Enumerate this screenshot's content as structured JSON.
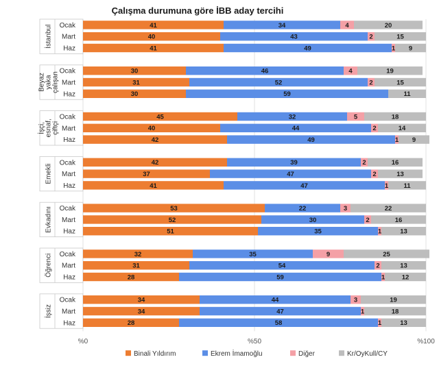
{
  "chart_data": {
    "type": "bar",
    "orientation": "horizontal",
    "stacked": true,
    "title": "Çalışma durumuna göre İBB aday tercihi",
    "xlim": [
      0,
      100
    ],
    "x_ticks": [
      "%0",
      "%50",
      "%100"
    ],
    "series": [
      {
        "name": "Binali Yıldırım",
        "color": "#ed7d31"
      },
      {
        "name": "Ekrem İmamoğlu",
        "color": "#5b8ee6"
      },
      {
        "name": "Diğer",
        "color": "#f4a0a6"
      },
      {
        "name": "Kr/OyKull/CY",
        "color": "#bdbdbd"
      }
    ],
    "groups": [
      {
        "label": [
          "İstanbul"
        ],
        "rows": [
          {
            "month": "Ocak",
            "values": [
              41,
              34,
              4,
              20
            ]
          },
          {
            "month": "Mart",
            "values": [
              40,
              43,
              2,
              15
            ]
          },
          {
            "month": "Haz",
            "values": [
              41,
              49,
              1,
              9
            ]
          }
        ]
      },
      {
        "label": [
          "Beyaz",
          "yaka",
          "çalışan"
        ],
        "rows": [
          {
            "month": "Ocak",
            "values": [
              30,
              46,
              4,
              19
            ]
          },
          {
            "month": "Mart",
            "values": [
              31,
              52,
              2,
              15
            ]
          },
          {
            "month": "Haz",
            "values": [
              30,
              59,
              0,
              11
            ]
          }
        ]
      },
      {
        "label": [
          "İşçi,",
          "esnaf,",
          "çiftçi"
        ],
        "rows": [
          {
            "month": "Ocak",
            "values": [
              45,
              32,
              5,
              18
            ]
          },
          {
            "month": "Mart",
            "values": [
              40,
              44,
              2,
              14
            ]
          },
          {
            "month": "Haz",
            "values": [
              42,
              49,
              1,
              9
            ]
          }
        ]
      },
      {
        "label": [
          "Emekli"
        ],
        "rows": [
          {
            "month": "Ocak",
            "values": [
              42,
              39,
              2,
              16
            ]
          },
          {
            "month": "Mart",
            "values": [
              37,
              47,
              2,
              13
            ]
          },
          {
            "month": "Haz",
            "values": [
              41,
              47,
              1,
              11
            ]
          }
        ]
      },
      {
        "label": [
          "Evkadını"
        ],
        "rows": [
          {
            "month": "Ocak",
            "values": [
              53,
              22,
              3,
              22
            ]
          },
          {
            "month": "Mart",
            "values": [
              52,
              30,
              2,
              16
            ]
          },
          {
            "month": "Haz",
            "values": [
              51,
              35,
              1,
              13
            ]
          }
        ]
      },
      {
        "label": [
          "Öğrenci"
        ],
        "rows": [
          {
            "month": "Ocak",
            "values": [
              32,
              35,
              9,
              25
            ]
          },
          {
            "month": "Mart",
            "values": [
              31,
              54,
              2,
              13
            ]
          },
          {
            "month": "Haz",
            "values": [
              28,
              59,
              1,
              12
            ]
          }
        ]
      },
      {
        "label": [
          "İşsiz"
        ],
        "rows": [
          {
            "month": "Ocak",
            "values": [
              34,
              44,
              3,
              19
            ]
          },
          {
            "month": "Mart",
            "values": [
              34,
              47,
              1,
              18
            ]
          },
          {
            "month": "Haz",
            "values": [
              28,
              58,
              1,
              13
            ]
          }
        ]
      }
    ]
  }
}
